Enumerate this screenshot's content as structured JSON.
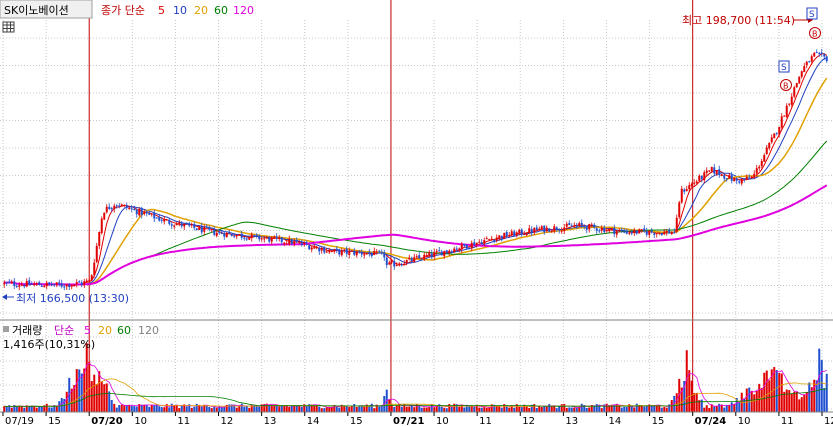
{
  "header": {
    "symbol": "SK이노베이션",
    "legend_prefix": "종가 단순",
    "ma": [
      {
        "label": "5",
        "color": "#e00000"
      },
      {
        "label": "10",
        "color": "#2040c0"
      },
      {
        "label": "20",
        "color": "#e0a000"
      },
      {
        "label": "60",
        "color": "#008000"
      },
      {
        "label": "120",
        "color": "#e000e0"
      }
    ]
  },
  "annotations": {
    "high": "최고 198,700 (11:54)",
    "low": "최저 166,500 (13:30)"
  },
  "volume_panel": {
    "title": "거래량",
    "legend_prefix": "단순",
    "ma": [
      {
        "label": "5",
        "color": "#e000e0"
      },
      {
        "label": "20",
        "color": "#e0a000"
      },
      {
        "label": "60",
        "color": "#008000"
      },
      {
        "label": "120",
        "color": "#808080"
      }
    ],
    "current": "1,416주(10,31%)"
  },
  "colors": {
    "up": "#e00000",
    "down": "#2050d0",
    "grid": "#c8c8c8",
    "divider": "#c00000"
  },
  "chart_data": {
    "type": "candlestick",
    "title": "SK이노베이션",
    "price_range": [
      165000,
      200000
    ],
    "x_ticks": [
      "07/19",
      "15",
      "07/20",
      "10",
      "11",
      "12",
      "13",
      "14",
      "15",
      "07/21",
      "10",
      "11",
      "12",
      "13",
      "14",
      "15",
      "07/24",
      "10",
      "11",
      "12"
    ],
    "session_dividers": [
      "07/20",
      "07/21",
      "07/24"
    ],
    "price_keypoints": [
      {
        "t": 0,
        "p": 167200
      },
      {
        "t": 0.07,
        "p": 167000
      },
      {
        "t": 0.095,
        "p": 167300
      },
      {
        "t": 0.105,
        "p": 167600
      },
      {
        "t": 0.12,
        "p": 177000
      },
      {
        "t": 0.135,
        "p": 178000
      },
      {
        "t": 0.16,
        "p": 177000
      },
      {
        "t": 0.2,
        "p": 175500
      },
      {
        "t": 0.25,
        "p": 174200
      },
      {
        "t": 0.3,
        "p": 173500
      },
      {
        "t": 0.35,
        "p": 172800
      },
      {
        "t": 0.4,
        "p": 171500
      },
      {
        "t": 0.44,
        "p": 171300
      },
      {
        "t": 0.462,
        "p": 171000
      },
      {
        "t": 0.465,
        "p": 169600
      },
      {
        "t": 0.5,
        "p": 170500
      },
      {
        "t": 0.55,
        "p": 172000
      },
      {
        "t": 0.6,
        "p": 173500
      },
      {
        "t": 0.65,
        "p": 174500
      },
      {
        "t": 0.7,
        "p": 175000
      },
      {
        "t": 0.75,
        "p": 174200
      },
      {
        "t": 0.8,
        "p": 174100
      },
      {
        "t": 0.816,
        "p": 174200
      },
      {
        "t": 0.822,
        "p": 179500
      },
      {
        "t": 0.86,
        "p": 182500
      },
      {
        "t": 0.89,
        "p": 181000
      },
      {
        "t": 0.91,
        "p": 181500
      },
      {
        "t": 0.94,
        "p": 188000
      },
      {
        "t": 0.97,
        "p": 196000
      },
      {
        "t": 0.985,
        "p": 198000
      },
      {
        "t": 1.0,
        "p": 197500
      }
    ],
    "volume_bursts": [
      {
        "t": 0.1,
        "w": 0.035,
        "v": 1.0
      },
      {
        "t": 0.465,
        "w": 0.006,
        "v": 0.4
      },
      {
        "t": 0.83,
        "w": 0.02,
        "v": 0.75
      },
      {
        "t": 0.93,
        "w": 0.05,
        "v": 0.6
      },
      {
        "t": 0.99,
        "w": 0.02,
        "v": 0.85
      }
    ]
  }
}
